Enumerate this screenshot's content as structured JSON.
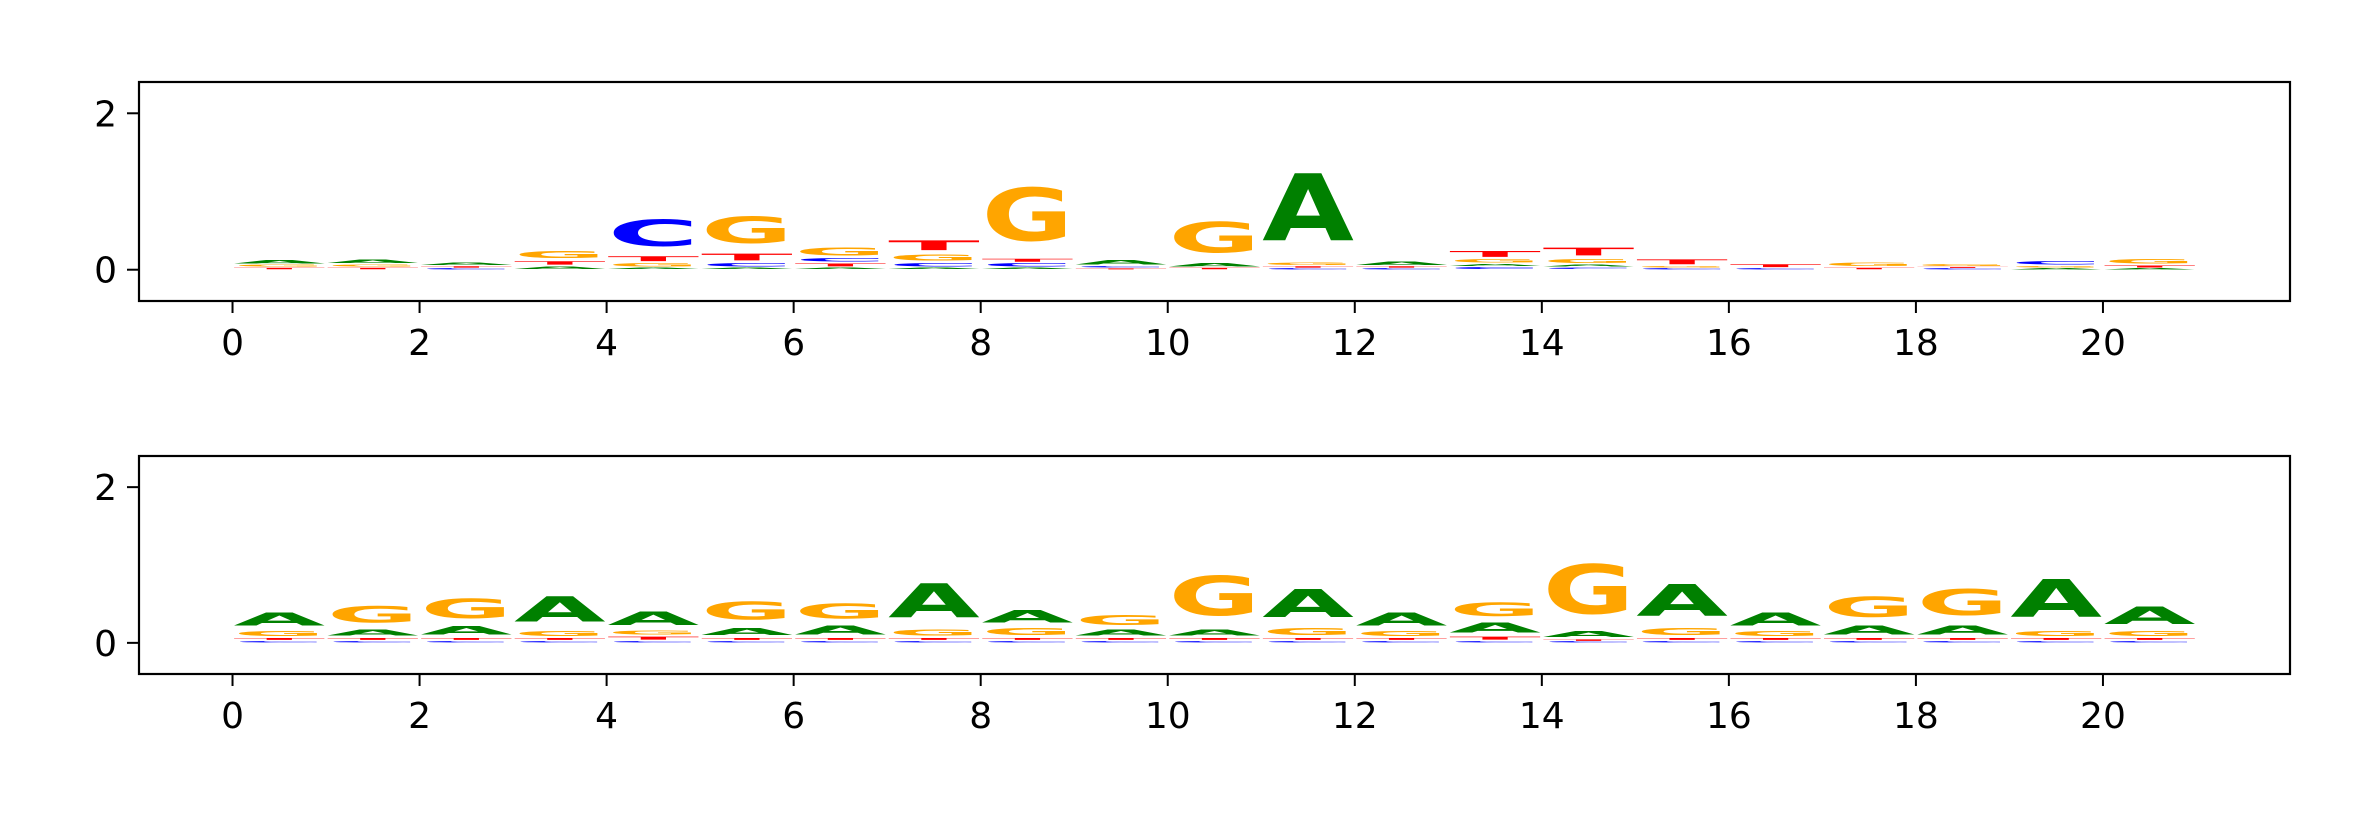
{
  "colors": {
    "A": "#008000",
    "C": "#0000ff",
    "G": "#ffa500",
    "T": "#ff0000",
    "axis": "#000000"
  },
  "chart_data": [
    {
      "type": "sequence-logo",
      "title": "",
      "xlabel": "",
      "ylabel": "",
      "xlim": [
        -1,
        22
      ],
      "ylim": [
        -0.4,
        2.4
      ],
      "xticks": [
        "0",
        "2",
        "4",
        "6",
        "8",
        "10",
        "12",
        "14",
        "16",
        "18",
        "20"
      ],
      "yticks": [
        "0",
        "2"
      ],
      "positions": [
        {
          "x": 0,
          "letters": {
            "T": 0.03,
            "G": 0.04,
            "A": 0.06
          }
        },
        {
          "x": 1,
          "letters": {
            "T": 0.03,
            "G": 0.04,
            "A": 0.07
          }
        },
        {
          "x": 2,
          "letters": {
            "C": 0.02,
            "T": 0.03,
            "A": 0.05
          }
        },
        {
          "x": 3,
          "letters": {
            "A": 0.05,
            "T": 0.07,
            "G": 0.14
          }
        },
        {
          "x": 4,
          "letters": {
            "A": 0.03,
            "G": 0.06,
            "T": 0.1,
            "C": 0.55
          }
        },
        {
          "x": 5,
          "letters": {
            "A": 0.03,
            "C": 0.06,
            "T": 0.14,
            "G": 0.55
          }
        },
        {
          "x": 6,
          "letters": {
            "A": 0.03,
            "T": 0.06,
            "C": 0.06,
            "G": 0.16
          }
        },
        {
          "x": 7,
          "letters": {
            "A": 0.03,
            "C": 0.06,
            "G": 0.12,
            "T": 0.2
          }
        },
        {
          "x": 8,
          "letters": {
            "A": 0.03,
            "C": 0.06,
            "T": 0.06,
            "G": 1.08
          }
        },
        {
          "x": 9,
          "letters": {
            "T": 0.02,
            "C": 0.03,
            "A": 0.09
          }
        },
        {
          "x": 10,
          "letters": {
            "T": 0.03,
            "A": 0.06,
            "G": 0.62
          }
        },
        {
          "x": 11,
          "letters": {
            "C": 0.02,
            "T": 0.03,
            "G": 0.05,
            "A": 1.38
          }
        },
        {
          "x": 12,
          "letters": {
            "C": 0.02,
            "T": 0.03,
            "A": 0.06
          }
        },
        {
          "x": 13,
          "letters": {
            "C": 0.04,
            "A": 0.04,
            "G": 0.06,
            "T": 0.12
          }
        },
        {
          "x": 14,
          "letters": {
            "C": 0.03,
            "A": 0.04,
            "G": 0.08,
            "T": 0.16
          }
        },
        {
          "x": 15,
          "letters": {
            "C": 0.02,
            "G": 0.03,
            "T": 0.1
          }
        },
        {
          "x": 16,
          "letters": {
            "C": 0.02,
            "T": 0.06
          }
        },
        {
          "x": 17,
          "letters": {
            "T": 0.03,
            "G": 0.07
          }
        },
        {
          "x": 18,
          "letters": {
            "C": 0.02,
            "T": 0.02,
            "G": 0.04
          }
        },
        {
          "x": 19,
          "letters": {
            "A": 0.02,
            "G": 0.03,
            "C": 0.07
          }
        },
        {
          "x": 20,
          "letters": {
            "A": 0.02,
            "T": 0.04,
            "G": 0.09
          }
        }
      ]
    },
    {
      "type": "sequence-logo",
      "title": "",
      "xlabel": "",
      "ylabel": "",
      "xlim": [
        -1,
        22
      ],
      "ylim": [
        -0.4,
        2.4
      ],
      "xticks": [
        "0",
        "2",
        "4",
        "6",
        "8",
        "10",
        "12",
        "14",
        "16",
        "18",
        "20"
      ],
      "yticks": [
        "0",
        "2"
      ],
      "positions": [
        {
          "x": 0,
          "letters": {
            "C": 0.03,
            "T": 0.04,
            "G": 0.1,
            "A": 0.26
          }
        },
        {
          "x": 1,
          "letters": {
            "C": 0.03,
            "T": 0.04,
            "A": 0.12,
            "G": 0.34
          }
        },
        {
          "x": 2,
          "letters": {
            "C": 0.03,
            "T": 0.04,
            "A": 0.17,
            "G": 0.4
          }
        },
        {
          "x": 3,
          "letters": {
            "C": 0.03,
            "T": 0.04,
            "G": 0.1,
            "A": 0.52
          }
        },
        {
          "x": 4,
          "letters": {
            "C": 0.03,
            "T": 0.06,
            "G": 0.08,
            "A": 0.28
          }
        },
        {
          "x": 5,
          "letters": {
            "C": 0.03,
            "T": 0.04,
            "A": 0.15,
            "G": 0.38
          }
        },
        {
          "x": 6,
          "letters": {
            "C": 0.03,
            "T": 0.04,
            "A": 0.18,
            "G": 0.3
          }
        },
        {
          "x": 7,
          "letters": {
            "C": 0.03,
            "T": 0.04,
            "G": 0.12,
            "A": 0.7
          }
        },
        {
          "x": 8,
          "letters": {
            "C": 0.03,
            "T": 0.04,
            "G": 0.14,
            "A": 0.25
          }
        },
        {
          "x": 9,
          "letters": {
            "C": 0.03,
            "T": 0.04,
            "A": 0.12,
            "G": 0.2
          }
        },
        {
          "x": 10,
          "letters": {
            "C": 0.03,
            "T": 0.04,
            "A": 0.12,
            "G": 0.82
          }
        },
        {
          "x": 11,
          "letters": {
            "C": 0.03,
            "T": 0.04,
            "G": 0.14,
            "A": 0.58
          }
        },
        {
          "x": 12,
          "letters": {
            "C": 0.03,
            "T": 0.04,
            "G": 0.1,
            "A": 0.26
          }
        },
        {
          "x": 13,
          "letters": {
            "C": 0.03,
            "T": 0.06,
            "A": 0.2,
            "G": 0.28
          }
        },
        {
          "x": 14,
          "letters": {
            "C": 0.02,
            "T": 0.03,
            "A": 0.12,
            "G": 1.02
          }
        },
        {
          "x": 15,
          "letters": {
            "C": 0.03,
            "T": 0.04,
            "G": 0.14,
            "A": 0.66
          }
        },
        {
          "x": 16,
          "letters": {
            "C": 0.03,
            "T": 0.04,
            "G": 0.1,
            "A": 0.26
          }
        },
        {
          "x": 17,
          "letters": {
            "C": 0.03,
            "T": 0.04,
            "A": 0.18,
            "G": 0.42
          }
        },
        {
          "x": 18,
          "letters": {
            "C": 0.03,
            "T": 0.04,
            "A": 0.18,
            "G": 0.54
          }
        },
        {
          "x": 19,
          "letters": {
            "C": 0.03,
            "T": 0.04,
            "G": 0.1,
            "A": 0.78
          }
        },
        {
          "x": 20,
          "letters": {
            "C": 0.03,
            "T": 0.04,
            "G": 0.1,
            "A": 0.36
          }
        }
      ]
    }
  ]
}
